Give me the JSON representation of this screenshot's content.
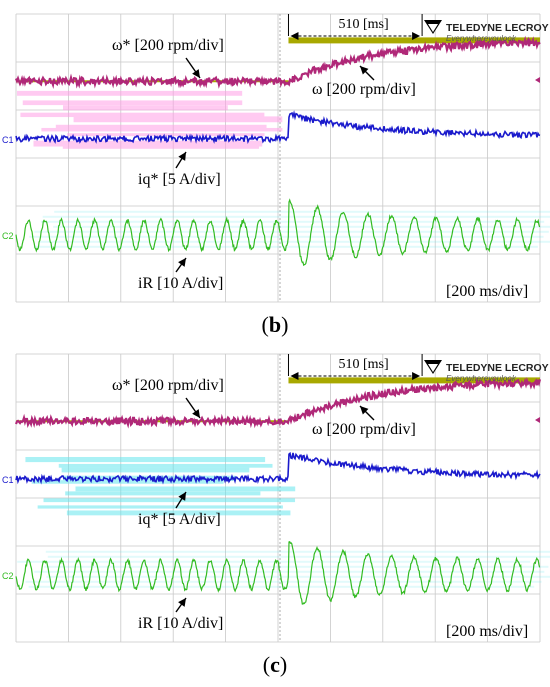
{
  "figures": [
    {
      "caption_open": "(",
      "caption_letter": "b",
      "caption_close": ")",
      "annotations": {
        "omega_ref": "ω* [200 rpm/div]",
        "omega": "ω [200 rpm/div]",
        "iq_ref": "iq* [5 A/div]",
        "iR": "iR [10 A/div]",
        "timebase": "[200 ms/div]",
        "settling": "510 [ms]"
      }
    },
    {
      "caption_open": "(",
      "caption_letter": "c",
      "caption_close": ")",
      "annotations": {
        "omega_ref": "ω* [200 rpm/div]",
        "omega": "ω [200 rpm/div]",
        "iq_ref": "iq* [5 A/div]",
        "iR": "iR [10 A/div]",
        "timebase": "[200 ms/div]",
        "settling": "510 [ms]"
      }
    }
  ],
  "brand": {
    "name": "TELEDYNE LECROY",
    "tagline": "Everywhereyoulook"
  },
  "channel_markers": [
    "C1",
    "C2"
  ],
  "colors": {
    "grid": "#c8c8c8",
    "omega_ref": "#a8a800",
    "omega": "#b02878",
    "iq": "#1a1acc",
    "iR": "#33bb22",
    "ghost_pink": "#ff9fe6",
    "ghost_cyan": "#66e6ee"
  },
  "chart_data": [
    {
      "type": "line",
      "time_per_div_ms": 200,
      "divisions": 10,
      "step_time_div": 5.2,
      "settling_time_ms": 510,
      "series": [
        {
          "name": "ω*",
          "scale": "200 rpm/div",
          "before_div": 1.4,
          "after_div": 0.55
        },
        {
          "name": "ω",
          "scale": "200 rpm/div",
          "start_div": 1.4,
          "final_div": 0.55
        },
        {
          "name": "iq*",
          "scale": "5 A/div",
          "before_div": 2.6,
          "peak_div": 2.1,
          "final_div": 2.55
        },
        {
          "name": "iR",
          "scale": "10 A/div",
          "center_div": 4.6,
          "amplitude_div": 0.3,
          "amplitude_peak_div": 0.7
        }
      ]
    },
    {
      "type": "line",
      "time_per_div_ms": 200,
      "divisions": 10,
      "step_time_div": 5.2,
      "settling_time_ms": 510,
      "series": [
        {
          "name": "ω*",
          "scale": "200 rpm/div",
          "before_div": 1.4,
          "after_div": 0.55
        },
        {
          "name": "ω",
          "scale": "200 rpm/div",
          "start_div": 1.4,
          "final_div": 0.55
        },
        {
          "name": "iq*",
          "scale": "5 A/div",
          "before_div": 2.6,
          "peak_div": 2.1,
          "final_div": 2.55
        },
        {
          "name": "iR",
          "scale": "10 A/div",
          "center_div": 4.6,
          "amplitude_div": 0.3,
          "amplitude_peak_div": 0.7
        }
      ]
    }
  ]
}
